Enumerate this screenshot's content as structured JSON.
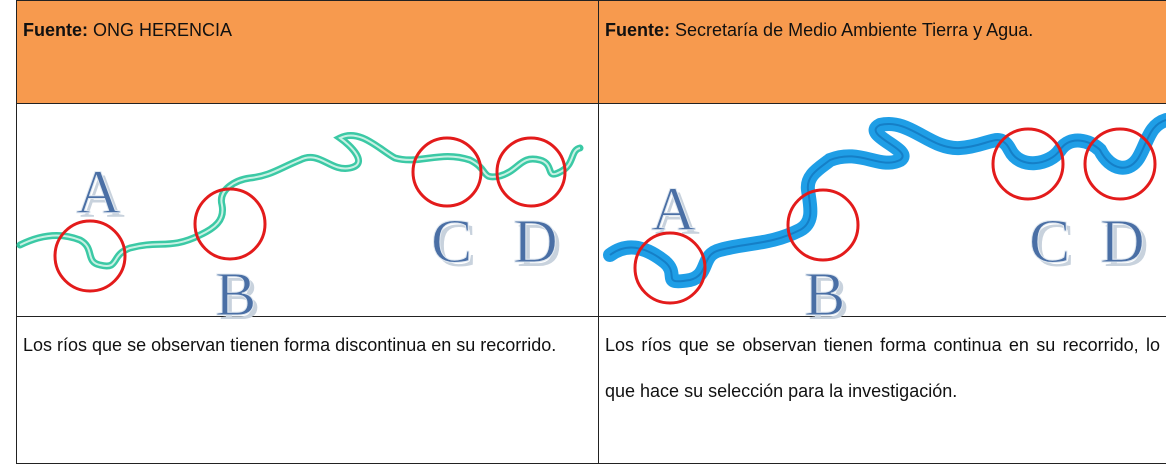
{
  "table": {
    "header": [
      {
        "label": "Fuente:",
        "text": "ONG HERENCIA"
      },
      {
        "label": "Fuente:",
        "text": "Secretaría de Medio Ambiente Tierra y Agua."
      }
    ],
    "images": [
      {
        "labels": [
          "A",
          "B",
          "C",
          "D"
        ]
      },
      {
        "labels": [
          "A",
          "B",
          "C",
          "D"
        ]
      }
    ],
    "rows": [
      [
        "Los ríos que se observan tienen forma discontinua en su recorrido.",
        "Los ríos que se observan tienen forma continua en su recorrido, lo que hace su selección para la investigación."
      ]
    ]
  }
}
